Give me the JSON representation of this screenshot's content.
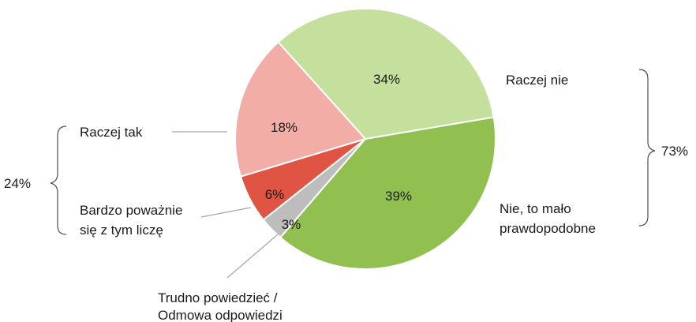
{
  "chart_data": {
    "type": "pie",
    "slices": [
      {
        "label": "Raczej nie",
        "value": 34,
        "value_label": "34%",
        "color": "#c5df9d"
      },
      {
        "label": "Nie, to mało prawdopodobne",
        "value": 39,
        "value_label": "39%",
        "color": "#92c050"
      },
      {
        "label": "Trudno powiedzieć / Odmowa odpowiedzi",
        "value": 3,
        "value_label": "3%",
        "color": "#bdbdbd"
      },
      {
        "label": "Bardzo poważnie się z tym liczę",
        "value": 6,
        "value_label": "6%",
        "color": "#e05444"
      },
      {
        "label": "Raczej tak",
        "value": 18,
        "value_label": "18%",
        "color": "#f2ada6"
      }
    ],
    "category_labels": {
      "raczej_nie": "Raczej nie",
      "nie_malo": [
        "Nie, to mało",
        "prawdopodobne"
      ],
      "trudno": [
        "Trudno powiedzieć /",
        "Odmowa odpowiedzi"
      ],
      "bardzo": [
        "Bardzo poważnie",
        "się z tym liczę"
      ],
      "raczej_tak": "Raczej tak"
    },
    "groups": [
      {
        "label": "24%",
        "value": 24,
        "side": "left"
      },
      {
        "label": "73%",
        "value": 73,
        "side": "right"
      }
    ]
  }
}
